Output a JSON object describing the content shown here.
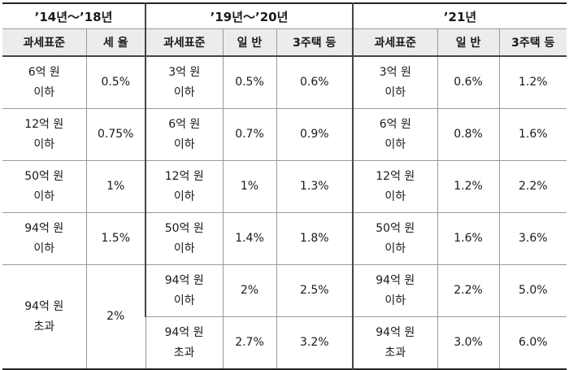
{
  "periods": {
    "p1": "’14년～’18년",
    "p2": "’19년～’20년",
    "p3": "’21년"
  },
  "columns": {
    "p1": {
      "base": "과세표준",
      "rate": "세 율"
    },
    "p2": {
      "base": "과세표준",
      "general": "일 반",
      "multi": "3주택 등"
    },
    "p3": {
      "base": "과세표준",
      "general": "일 반",
      "multi": "3주택 등"
    }
  },
  "p1_rows": [
    {
      "base": "6억 원\n이하",
      "rate": "0.5%"
    },
    {
      "base": "12억 원\n이하",
      "rate": "0.75%"
    },
    {
      "base": "50억 원\n이하",
      "rate": "1%"
    },
    {
      "base": "94억 원\n이하",
      "rate": "1.5%"
    },
    {
      "base": "94억 원\n초과",
      "rate": "2%"
    }
  ],
  "p2_rows": [
    {
      "base": "3억 원\n이하",
      "general": "0.5%",
      "multi": "0.6%"
    },
    {
      "base": "6억 원\n이하",
      "general": "0.7%",
      "multi": "0.9%"
    },
    {
      "base": "12억 원\n이하",
      "general": "1%",
      "multi": "1.3%"
    },
    {
      "base": "50억 원\n이하",
      "general": "1.4%",
      "multi": "1.8%"
    },
    {
      "base": "94억 원\n이하",
      "general": "2%",
      "multi": "2.5%"
    },
    {
      "base": "94억 원\n초과",
      "general": "2.7%",
      "multi": "3.2%"
    }
  ],
  "p3_rows": [
    {
      "base": "3억 원\n이하",
      "general": "0.6%",
      "multi": "1.2%"
    },
    {
      "base": "6억 원\n이하",
      "general": "0.8%",
      "multi": "1.6%"
    },
    {
      "base": "12억 원\n이하",
      "general": "1.2%",
      "multi": "2.2%"
    },
    {
      "base": "50억 원\n이하",
      "general": "1.6%",
      "multi": "3.6%"
    },
    {
      "base": "94억 원\n이하",
      "general": "2.2%",
      "multi": "5.0%"
    },
    {
      "base": "94억 원\n초과",
      "general": "3.0%",
      "multi": "6.0%"
    }
  ]
}
